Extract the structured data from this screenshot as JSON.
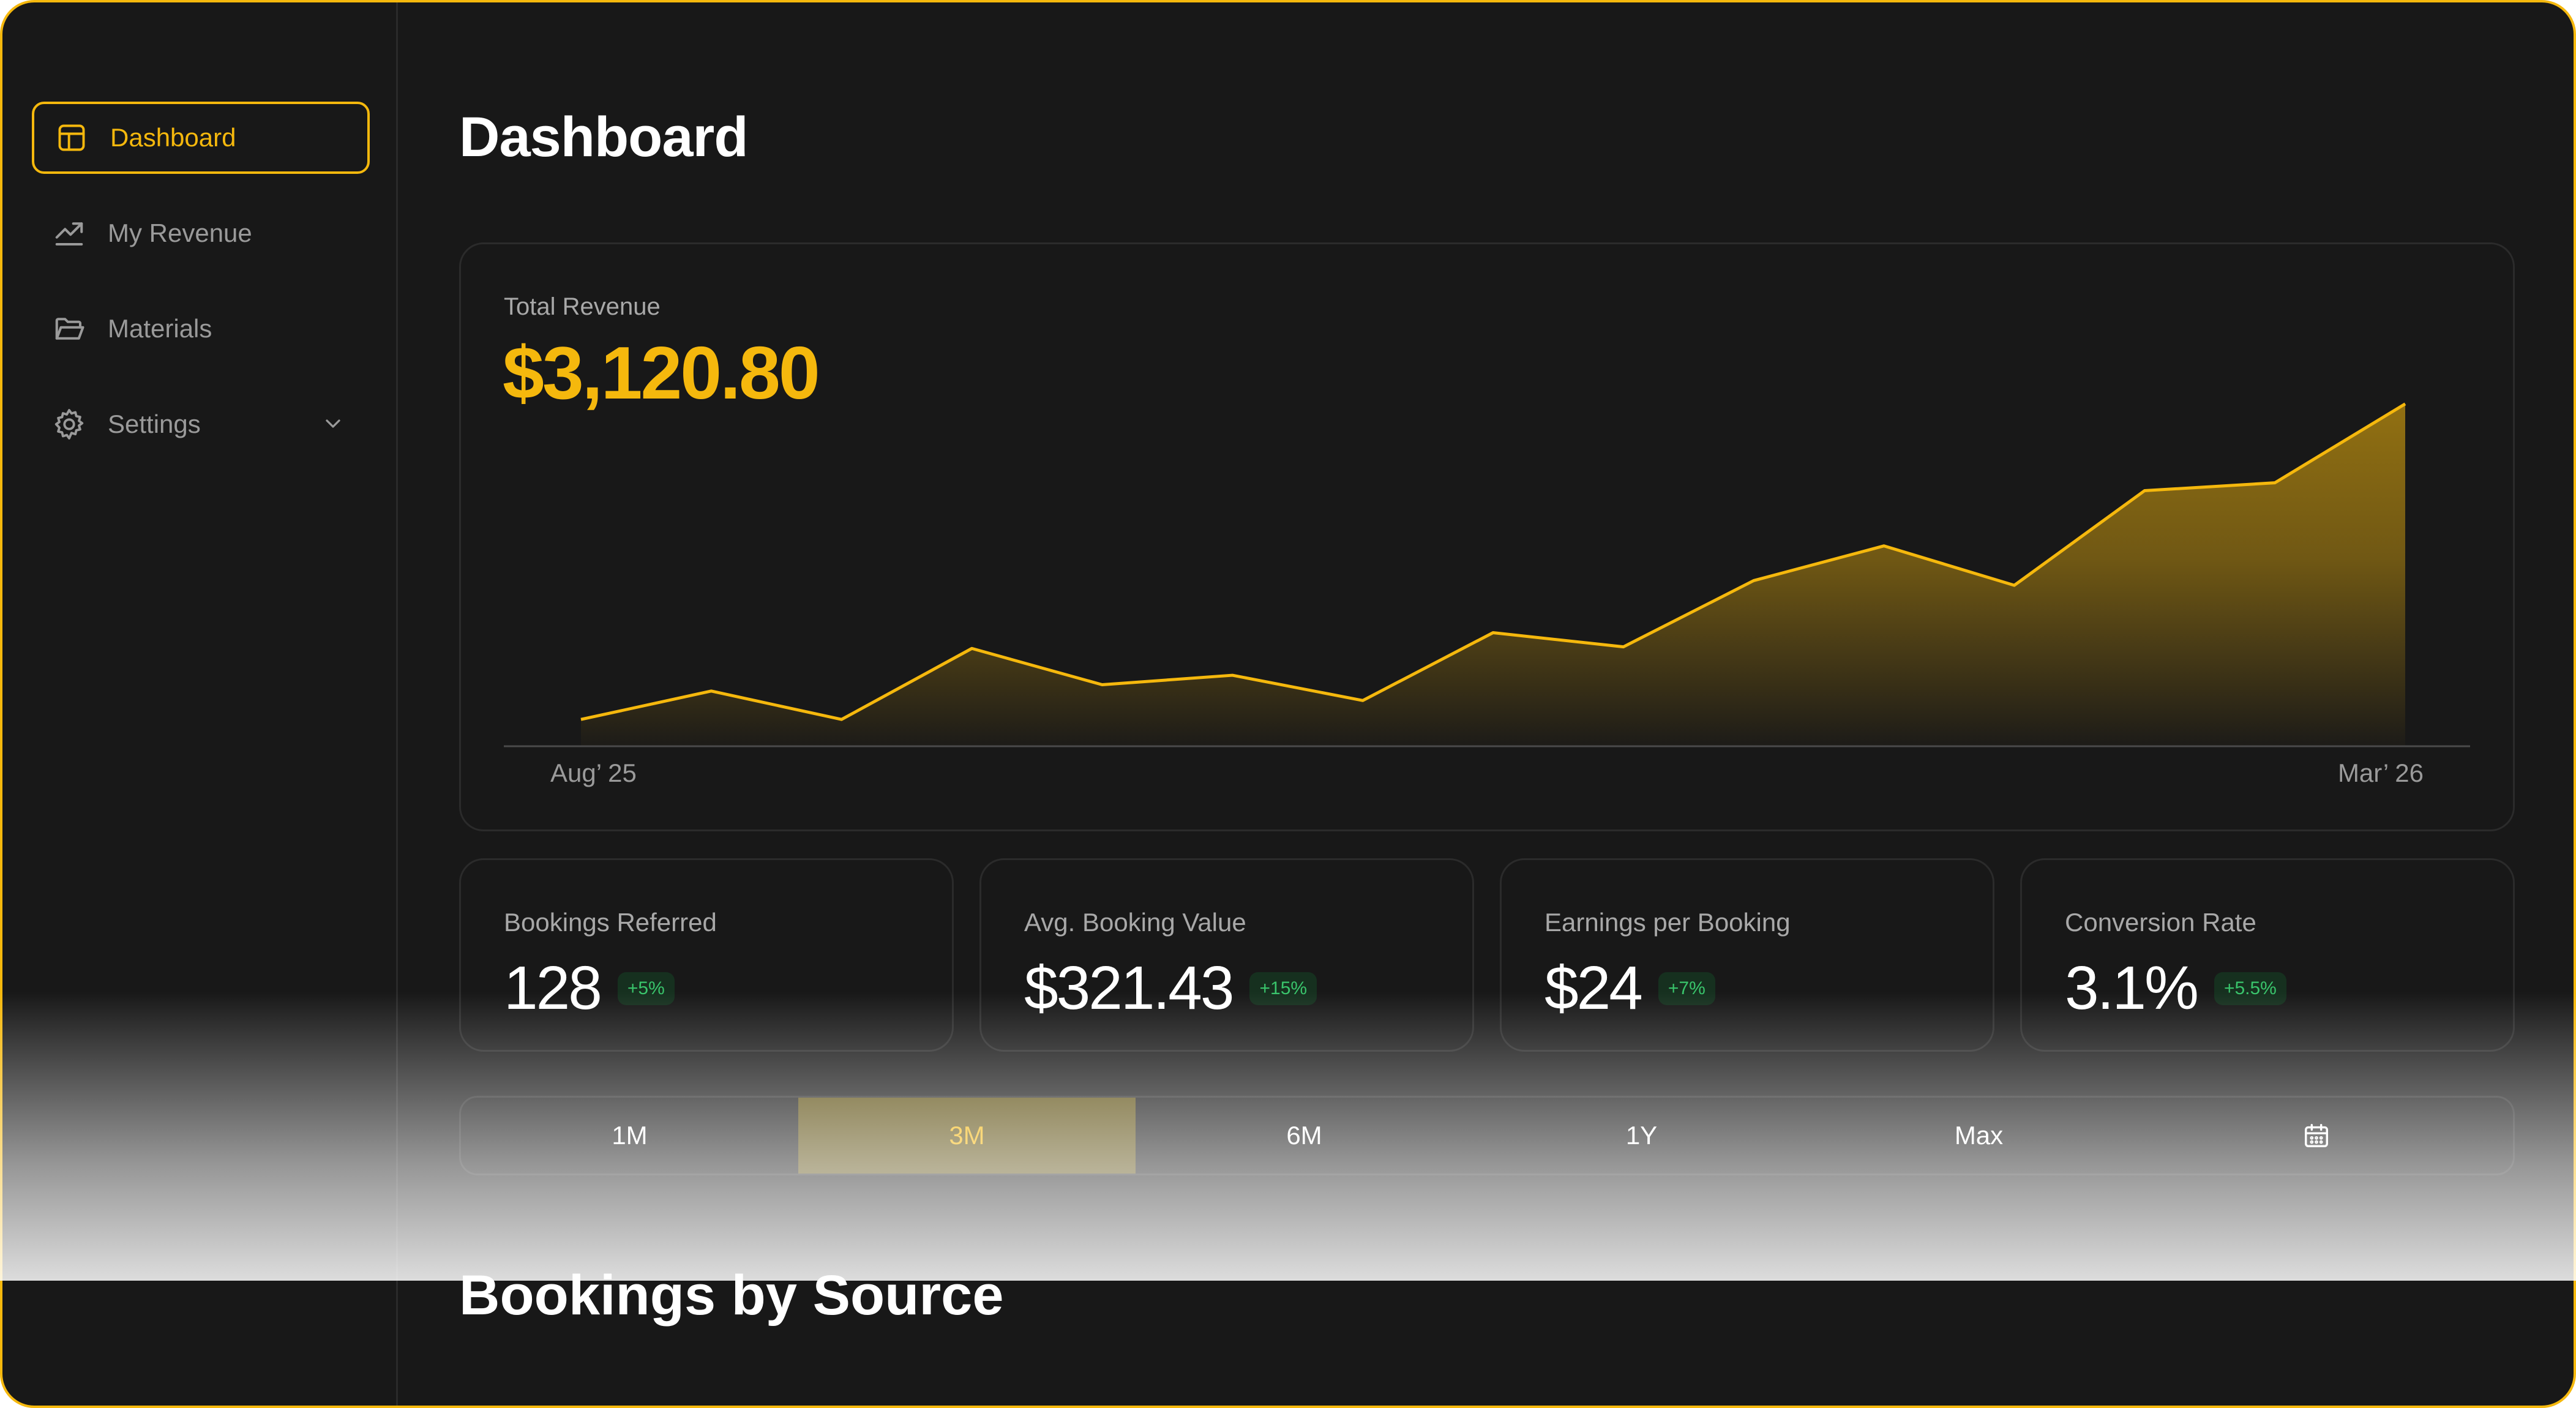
{
  "sidebar": {
    "items": [
      {
        "label": "Dashboard",
        "icon": "dashboard-icon",
        "active": true
      },
      {
        "label": "My Revenue",
        "icon": "trending-up-icon",
        "active": false
      },
      {
        "label": "Materials",
        "icon": "folder-open-icon",
        "active": false
      },
      {
        "label": "Settings",
        "icon": "gear-icon",
        "active": false,
        "expandable": true
      }
    ]
  },
  "page": {
    "title": "Dashboard",
    "next_section_title": "Bookings by Source"
  },
  "revenue": {
    "label": "Total Revenue",
    "value": "$3,120.80",
    "accent": "#f5b80d"
  },
  "chart_data": {
    "type": "area",
    "title": "",
    "x_start_label": "Aug’ 25",
    "x_end_label": "Mar’ 26",
    "values": [
      10,
      28,
      10,
      55,
      32,
      38,
      22,
      65,
      56,
      98,
      120,
      95,
      155,
      160,
      210
    ],
    "ylim": [
      0,
      220
    ],
    "grid": false,
    "color": "#f5b80d"
  },
  "stats": [
    {
      "label": "Bookings Referred",
      "value": "128",
      "change": "+5%"
    },
    {
      "label": "Avg. Booking Value",
      "value": "$321.43",
      "change": "+15%"
    },
    {
      "label": "Earnings per Booking",
      "value": "$24",
      "change": "+7%"
    },
    {
      "label": "Conversion Rate",
      "value": "3.1%",
      "change": "+5.5%"
    }
  ],
  "ranges": {
    "options": [
      "1M",
      "3M",
      "6M",
      "1Y",
      "Max"
    ],
    "selected": "3M",
    "calendar_icon": "calendar-icon"
  }
}
